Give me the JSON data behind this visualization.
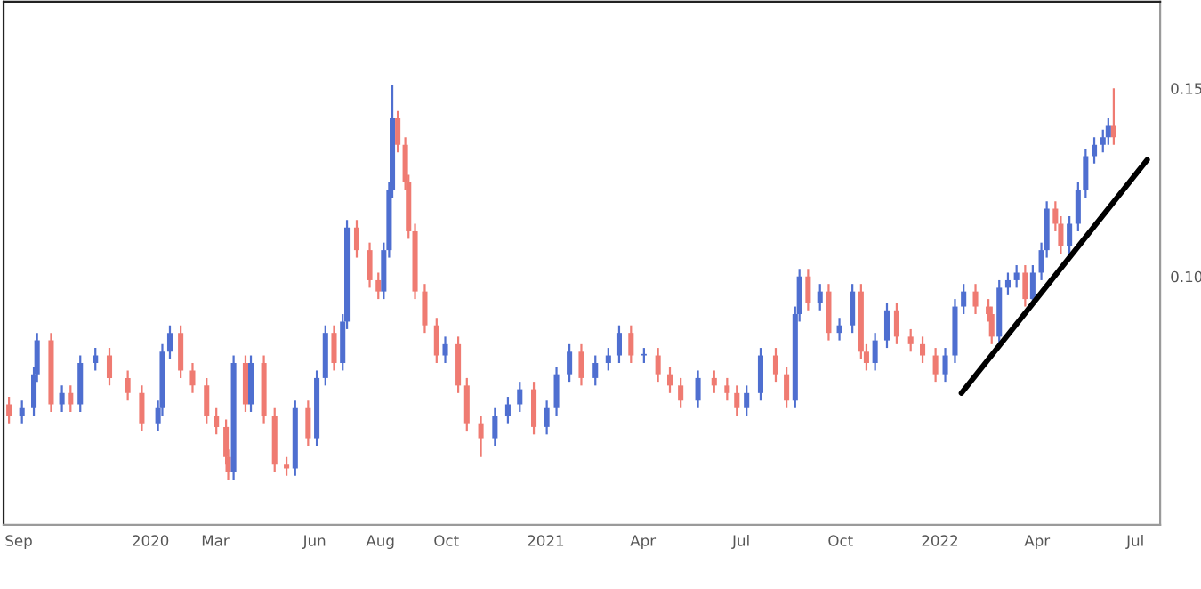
{
  "chart_data": {
    "type": "candlestick",
    "x": [
      "2019-08-23",
      "2019-09-04",
      "2019-09-15",
      "2019-09-18",
      "2019-10-01",
      "2019-10-11",
      "2019-10-19",
      "2019-10-28",
      "2019-11-11",
      "2019-11-24",
      "2019-12-11",
      "2019-12-24",
      "2020-01-08",
      "2020-01-12",
      "2020-01-19",
      "2020-01-29",
      "2020-02-09",
      "2020-02-22",
      "2020-03-02",
      "2020-03-11",
      "2020-03-13",
      "2020-03-18",
      "2020-03-29",
      "2020-04-03",
      "2020-04-15",
      "2020-04-25",
      "2020-05-06",
      "2020-05-14",
      "2020-05-26",
      "2020-06-03",
      "2020-06-11",
      "2020-06-19",
      "2020-06-27",
      "2020-07-01",
      "2020-07-10",
      "2020-07-22",
      "2020-07-30",
      "2020-08-04",
      "2020-08-09",
      "2020-08-12",
      "2020-08-17",
      "2020-08-24",
      "2020-08-27",
      "2020-09-02",
      "2020-09-11",
      "2020-09-22",
      "2020-09-30",
      "2020-10-12",
      "2020-10-20",
      "2020-11-02",
      "2020-11-15",
      "2020-11-27",
      "2020-12-08",
      "2020-12-21",
      "2021-01-02",
      "2021-01-11",
      "2021-01-23",
      "2021-02-03",
      "2021-02-16",
      "2021-02-28",
      "2021-03-10",
      "2021-03-21",
      "2021-04-02",
      "2021-04-15",
      "2021-04-26",
      "2021-05-06",
      "2021-05-22",
      "2021-06-06",
      "2021-06-18",
      "2021-06-27",
      "2021-07-06",
      "2021-07-19",
      "2021-08-02",
      "2021-08-12",
      "2021-08-20",
      "2021-08-24",
      "2021-09-01",
      "2021-09-12",
      "2021-09-20",
      "2021-09-30",
      "2021-10-12",
      "2021-10-20",
      "2021-10-25",
      "2021-11-02",
      "2021-11-13",
      "2021-11-22",
      "2021-12-05",
      "2021-12-16",
      "2021-12-28",
      "2022-01-06",
      "2022-01-15",
      "2022-01-23",
      "2022-02-03",
      "2022-02-15",
      "2022-02-18",
      "2022-02-25",
      "2022-03-05",
      "2022-03-13",
      "2022-03-21",
      "2022-03-28",
      "2022-04-05",
      "2022-04-10",
      "2022-04-18",
      "2022-04-23",
      "2022-05-01",
      "2022-05-09",
      "2022-05-16",
      "2022-05-24",
      "2022-06-01",
      "2022-06-06",
      "2022-06-11"
    ],
    "ohlc": [
      [
        0.066,
        0.068,
        0.061,
        0.063
      ],
      [
        0.063,
        0.067,
        0.061,
        0.065
      ],
      [
        0.065,
        0.076,
        0.063,
        0.074
      ],
      [
        0.074,
        0.085,
        0.072,
        0.083
      ],
      [
        0.083,
        0.085,
        0.064,
        0.066
      ],
      [
        0.066,
        0.071,
        0.064,
        0.069
      ],
      [
        0.069,
        0.071,
        0.064,
        0.066
      ],
      [
        0.066,
        0.079,
        0.064,
        0.077
      ],
      [
        0.077,
        0.081,
        0.075,
        0.079
      ],
      [
        0.079,
        0.081,
        0.071,
        0.073
      ],
      [
        0.073,
        0.075,
        0.067,
        0.069
      ],
      [
        0.069,
        0.071,
        0.059,
        0.061
      ],
      [
        0.061,
        0.067,
        0.059,
        0.065
      ],
      [
        0.065,
        0.082,
        0.063,
        0.08
      ],
      [
        0.08,
        0.087,
        0.078,
        0.085
      ],
      [
        0.085,
        0.087,
        0.073,
        0.075
      ],
      [
        0.075,
        0.077,
        0.069,
        0.071
      ],
      [
        0.071,
        0.073,
        0.061,
        0.063
      ],
      [
        0.063,
        0.065,
        0.058,
        0.06
      ],
      [
        0.06,
        0.062,
        0.05,
        0.052
      ],
      [
        0.052,
        0.054,
        0.046,
        0.048
      ],
      [
        0.048,
        0.079,
        0.046,
        0.077
      ],
      [
        0.077,
        0.079,
        0.064,
        0.066
      ],
      [
        0.066,
        0.079,
        0.064,
        0.077
      ],
      [
        0.077,
        0.079,
        0.061,
        0.063
      ],
      [
        0.063,
        0.065,
        0.048,
        0.05
      ],
      [
        0.05,
        0.052,
        0.047,
        0.049
      ],
      [
        0.049,
        0.067,
        0.047,
        0.065
      ],
      [
        0.065,
        0.067,
        0.055,
        0.057
      ],
      [
        0.057,
        0.075,
        0.055,
        0.073
      ],
      [
        0.073,
        0.087,
        0.071,
        0.085
      ],
      [
        0.085,
        0.087,
        0.075,
        0.077
      ],
      [
        0.077,
        0.09,
        0.075,
        0.088
      ],
      [
        0.088,
        0.115,
        0.086,
        0.113
      ],
      [
        0.113,
        0.115,
        0.105,
        0.107
      ],
      [
        0.107,
        0.109,
        0.097,
        0.099
      ],
      [
        0.099,
        0.101,
        0.094,
        0.096
      ],
      [
        0.096,
        0.109,
        0.094,
        0.107
      ],
      [
        0.107,
        0.125,
        0.105,
        0.123
      ],
      [
        0.123,
        0.151,
        0.121,
        0.142
      ],
      [
        0.142,
        0.144,
        0.133,
        0.135
      ],
      [
        0.135,
        0.137,
        0.123,
        0.125
      ],
      [
        0.125,
        0.127,
        0.11,
        0.112
      ],
      [
        0.112,
        0.114,
        0.094,
        0.096
      ],
      [
        0.096,
        0.098,
        0.085,
        0.087
      ],
      [
        0.087,
        0.089,
        0.077,
        0.079
      ],
      [
        0.079,
        0.084,
        0.077,
        0.082
      ],
      [
        0.082,
        0.084,
        0.069,
        0.071
      ],
      [
        0.071,
        0.073,
        0.059,
        0.061
      ],
      [
        0.061,
        0.063,
        0.052,
        0.057
      ],
      [
        0.057,
        0.065,
        0.055,
        0.063
      ],
      [
        0.063,
        0.068,
        0.061,
        0.066
      ],
      [
        0.066,
        0.072,
        0.064,
        0.07
      ],
      [
        0.07,
        0.072,
        0.058,
        0.06
      ],
      [
        0.06,
        0.067,
        0.058,
        0.065
      ],
      [
        0.065,
        0.076,
        0.063,
        0.074
      ],
      [
        0.074,
        0.082,
        0.072,
        0.08
      ],
      [
        0.08,
        0.082,
        0.071,
        0.073
      ],
      [
        0.073,
        0.079,
        0.071,
        0.077
      ],
      [
        0.077,
        0.081,
        0.075,
        0.079
      ],
      [
        0.079,
        0.087,
        0.077,
        0.085
      ],
      [
        0.085,
        0.087,
        0.077,
        0.079
      ],
      [
        0.079,
        0.081,
        0.077,
        0.079
      ],
      [
        0.079,
        0.081,
        0.072,
        0.074
      ],
      [
        0.074,
        0.076,
        0.069,
        0.071
      ],
      [
        0.071,
        0.073,
        0.065,
        0.067
      ],
      [
        0.067,
        0.075,
        0.065,
        0.073
      ],
      [
        0.073,
        0.075,
        0.069,
        0.071
      ],
      [
        0.071,
        0.073,
        0.067,
        0.069
      ],
      [
        0.069,
        0.071,
        0.063,
        0.065
      ],
      [
        0.065,
        0.071,
        0.063,
        0.069
      ],
      [
        0.069,
        0.081,
        0.067,
        0.079
      ],
      [
        0.079,
        0.081,
        0.072,
        0.074
      ],
      [
        0.074,
        0.076,
        0.065,
        0.067
      ],
      [
        0.067,
        0.092,
        0.065,
        0.09
      ],
      [
        0.09,
        0.102,
        0.088,
        0.1
      ],
      [
        0.1,
        0.102,
        0.091,
        0.093
      ],
      [
        0.093,
        0.098,
        0.091,
        0.096
      ],
      [
        0.096,
        0.098,
        0.083,
        0.085
      ],
      [
        0.085,
        0.089,
        0.083,
        0.087
      ],
      [
        0.087,
        0.098,
        0.085,
        0.096
      ],
      [
        0.096,
        0.098,
        0.078,
        0.08
      ],
      [
        0.08,
        0.082,
        0.075,
        0.077
      ],
      [
        0.077,
        0.085,
        0.075,
        0.083
      ],
      [
        0.083,
        0.093,
        0.081,
        0.091
      ],
      [
        0.091,
        0.093,
        0.082,
        0.084
      ],
      [
        0.084,
        0.086,
        0.08,
        0.082
      ],
      [
        0.082,
        0.084,
        0.077,
        0.079
      ],
      [
        0.079,
        0.081,
        0.072,
        0.074
      ],
      [
        0.074,
        0.081,
        0.072,
        0.079
      ],
      [
        0.079,
        0.094,
        0.077,
        0.092
      ],
      [
        0.092,
        0.098,
        0.09,
        0.096
      ],
      [
        0.096,
        0.098,
        0.09,
        0.092
      ],
      [
        0.092,
        0.094,
        0.088,
        0.09
      ],
      [
        0.09,
        0.092,
        0.082,
        0.084
      ],
      [
        0.084,
        0.099,
        0.082,
        0.097
      ],
      [
        0.097,
        0.101,
        0.095,
        0.099
      ],
      [
        0.099,
        0.103,
        0.097,
        0.101
      ],
      [
        0.101,
        0.103,
        0.092,
        0.094
      ],
      [
        0.094,
        0.103,
        0.092,
        0.101
      ],
      [
        0.101,
        0.109,
        0.099,
        0.107
      ],
      [
        0.107,
        0.12,
        0.105,
        0.118
      ],
      [
        0.118,
        0.12,
        0.112,
        0.114
      ],
      [
        0.114,
        0.116,
        0.106,
        0.108
      ],
      [
        0.108,
        0.116,
        0.106,
        0.114
      ],
      [
        0.114,
        0.125,
        0.112,
        0.123
      ],
      [
        0.123,
        0.134,
        0.121,
        0.132
      ],
      [
        0.132,
        0.137,
        0.13,
        0.135
      ],
      [
        0.135,
        0.139,
        0.133,
        0.137
      ],
      [
        0.137,
        0.142,
        0.135,
        0.14
      ],
      [
        0.14,
        0.15,
        0.135,
        0.137
      ]
    ],
    "colors": [
      "#ef7b72",
      "#4f6fd0",
      "#4f6fd0",
      "#4f6fd0",
      "#ef7b72",
      "#4f6fd0",
      "#ef7b72",
      "#4f6fd0",
      "#4f6fd0",
      "#ef7b72",
      "#ef7b72",
      "#ef7b72",
      "#4f6fd0",
      "#4f6fd0",
      "#4f6fd0",
      "#ef7b72",
      "#ef7b72",
      "#ef7b72",
      "#ef7b72",
      "#ef7b72",
      "#ef7b72",
      "#4f6fd0",
      "#ef7b72",
      "#4f6fd0",
      "#ef7b72",
      "#ef7b72",
      "#ef7b72",
      "#4f6fd0",
      "#ef7b72",
      "#4f6fd0",
      "#4f6fd0",
      "#ef7b72",
      "#4f6fd0",
      "#4f6fd0",
      "#ef7b72",
      "#ef7b72",
      "#ef7b72",
      "#4f6fd0",
      "#4f6fd0",
      "#4f6fd0",
      "#ef7b72",
      "#ef7b72",
      "#ef7b72",
      "#ef7b72",
      "#ef7b72",
      "#ef7b72",
      "#4f6fd0",
      "#ef7b72",
      "#ef7b72",
      "#ef7b72",
      "#4f6fd0",
      "#4f6fd0",
      "#4f6fd0",
      "#ef7b72",
      "#4f6fd0",
      "#4f6fd0",
      "#4f6fd0",
      "#ef7b72",
      "#4f6fd0",
      "#4f6fd0",
      "#4f6fd0",
      "#ef7b72",
      "#4f6fd0",
      "#ef7b72",
      "#ef7b72",
      "#ef7b72",
      "#4f6fd0",
      "#ef7b72",
      "#ef7b72",
      "#ef7b72",
      "#4f6fd0",
      "#4f6fd0",
      "#ef7b72",
      "#ef7b72",
      "#4f6fd0",
      "#4f6fd0",
      "#ef7b72",
      "#4f6fd0",
      "#ef7b72",
      "#4f6fd0",
      "#4f6fd0",
      "#ef7b72",
      "#ef7b72",
      "#4f6fd0",
      "#4f6fd0",
      "#ef7b72",
      "#ef7b72",
      "#ef7b72",
      "#ef7b72",
      "#4f6fd0",
      "#4f6fd0",
      "#4f6fd0",
      "#ef7b72",
      "#ef7b72",
      "#ef7b72",
      "#4f6fd0",
      "#4f6fd0",
      "#4f6fd0",
      "#ef7b72",
      "#4f6fd0",
      "#4f6fd0",
      "#4f6fd0",
      "#ef7b72",
      "#ef7b72",
      "#4f6fd0",
      "#4f6fd0",
      "#4f6fd0",
      "#4f6fd0",
      "#4f6fd0",
      "#4f6fd0",
      "#ef7b72"
    ],
    "series": [
      {
        "type": "line",
        "x": [
          "2022-01-21",
          "2022-07-12"
        ],
        "values": [
          0.069,
          0.131
        ],
        "color": "#000000"
      }
    ],
    "xlim": [
      "2019-08-18",
      "2022-07-24"
    ],
    "ylim": [
      0.034,
      0.173
    ],
    "xticks": [
      {
        "value": "2019-09-01",
        "label": "Sep"
      },
      {
        "value": "2020-01-01",
        "label": "2020"
      },
      {
        "value": "2020-03-01",
        "label": "Mar"
      },
      {
        "value": "2020-06-01",
        "label": "Jun"
      },
      {
        "value": "2020-08-01",
        "label": "Aug"
      },
      {
        "value": "2020-10-01",
        "label": "Oct"
      },
      {
        "value": "2021-01-01",
        "label": "2021"
      },
      {
        "value": "2021-04-01",
        "label": "Apr"
      },
      {
        "value": "2021-07-01",
        "label": "Jul"
      },
      {
        "value": "2021-10-01",
        "label": "Oct"
      },
      {
        "value": "2022-01-01",
        "label": "2022"
      },
      {
        "value": "2022-04-01",
        "label": "Apr"
      },
      {
        "value": "2022-07-01",
        "label": "Jul"
      }
    ],
    "yticks": [
      {
        "value": 0.1,
        "label": "0.10"
      },
      {
        "value": 0.15,
        "label": "0.15"
      }
    ],
    "grid": false
  }
}
